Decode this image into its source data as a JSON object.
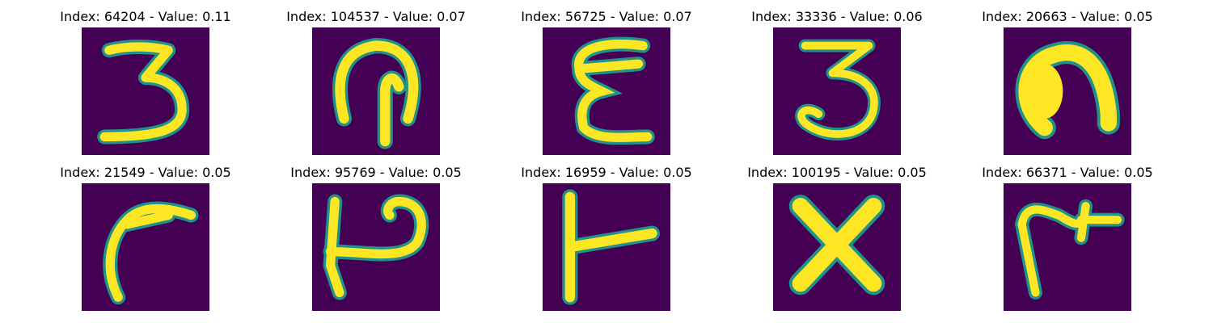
{
  "chart_data": {
    "type": "image_grid",
    "colormap": "viridis",
    "colors": {
      "background": "#440154",
      "stroke": "#fde725",
      "edge": "#21918c"
    },
    "panels": [
      {
        "index": 64204,
        "value": 0.11,
        "title": "Index: 64204 - Value: 0.11",
        "glyph": "3"
      },
      {
        "index": 104537,
        "value": 0.07,
        "title": "Index: 104537 - Value: 0.07",
        "glyph": "hook-arch"
      },
      {
        "index": 56725,
        "value": 0.07,
        "title": "Index: 56725 - Value: 0.07",
        "glyph": "E-curly"
      },
      {
        "index": 33336,
        "value": 0.06,
        "title": "Index: 33336 - Value: 0.06",
        "glyph": "3"
      },
      {
        "index": 20663,
        "value": 0.05,
        "title": "Index: 20663 - Value: 0.05",
        "glyph": "n-blob"
      },
      {
        "index": 21549,
        "value": 0.05,
        "title": "Index: 21549 - Value: 0.05",
        "glyph": "hook-left"
      },
      {
        "index": 95769,
        "value": 0.05,
        "title": "Index: 95769 - Value: 0.05",
        "glyph": "P-bar"
      },
      {
        "index": 16959,
        "value": 0.05,
        "title": "Index: 16959 - Value: 0.05",
        "glyph": "T-side"
      },
      {
        "index": 100195,
        "value": 0.05,
        "title": "Index: 100195 - Value: 0.05",
        "glyph": "X"
      },
      {
        "index": 66371,
        "value": 0.05,
        "title": "Index: 66371 - Value: 0.05",
        "glyph": "r-plus"
      }
    ]
  }
}
